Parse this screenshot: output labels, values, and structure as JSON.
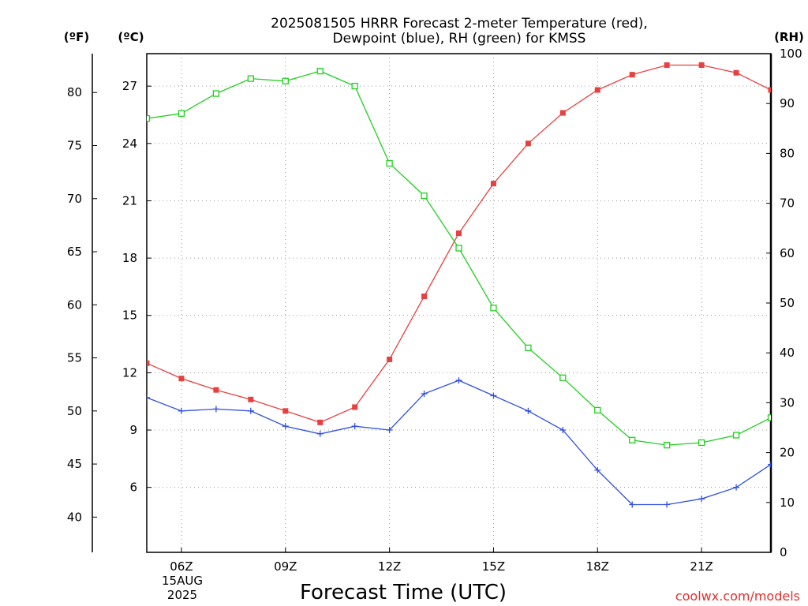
{
  "chart_data": {
    "type": "line",
    "title_line1": "2025081505 HRRR Forecast 2-meter Temperature (red),",
    "title_line2": "Dewpoint (blue), RH (green) for KMSS",
    "xlabel": "Forecast Time (UTC)",
    "credit": "coolwx.com/models",
    "units": {
      "fahrenheit": "(ºF)",
      "celsius": "(ºC)",
      "rh": "(RH)"
    },
    "x_hours": [
      5,
      6,
      7,
      8,
      9,
      10,
      11,
      12,
      13,
      14,
      15,
      16,
      17,
      18,
      19,
      20,
      21,
      22,
      23
    ],
    "x_ticks": [
      {
        "hour": 6,
        "label": "06Z"
      },
      {
        "hour": 9,
        "label": "09Z"
      },
      {
        "hour": 12,
        "label": "12Z"
      },
      {
        "hour": 15,
        "label": "15Z"
      },
      {
        "hour": 18,
        "label": "18Z"
      },
      {
        "hour": 21,
        "label": "21Z"
      }
    ],
    "date_line1": "15AUG",
    "date_line2": "2025",
    "ylim_c": [
      2.6,
      28.7
    ],
    "ylim_rh": [
      0,
      100
    ],
    "celsius_ticks": [
      6,
      9,
      12,
      15,
      18,
      21,
      24,
      27
    ],
    "fahrenheit_ticks": [
      40,
      45,
      50,
      55,
      60,
      65,
      70,
      75,
      80
    ],
    "rh_ticks": [
      0,
      10,
      20,
      30,
      40,
      50,
      60,
      70,
      80,
      90,
      100
    ],
    "series": [
      {
        "name": "Temperature",
        "axis": "celsius",
        "color": "#e84040",
        "marker": "filled-square",
        "values": [
          12.5,
          11.7,
          11.1,
          10.6,
          10.0,
          9.4,
          10.2,
          12.7,
          16.0,
          19.3,
          21.9,
          24.0,
          25.6,
          26.8,
          27.6,
          28.1,
          28.1,
          27.7,
          26.8
        ]
      },
      {
        "name": "Dewpoint",
        "axis": "celsius",
        "color": "#3050e0",
        "marker": "plus",
        "values": [
          10.7,
          10.0,
          10.1,
          10.0,
          9.2,
          8.8,
          9.2,
          9.0,
          10.9,
          11.6,
          10.8,
          10.0,
          9.0,
          6.9,
          5.1,
          5.1,
          5.4,
          6.0,
          7.2
        ]
      },
      {
        "name": "RH",
        "axis": "rh",
        "color": "#20d020",
        "marker": "open-square",
        "values": [
          87,
          88,
          92,
          95,
          94.5,
          96.5,
          93.5,
          78,
          71.5,
          61,
          49,
          41,
          35,
          28.5,
          22.5,
          21.5,
          22,
          23.5,
          27
        ]
      }
    ]
  }
}
